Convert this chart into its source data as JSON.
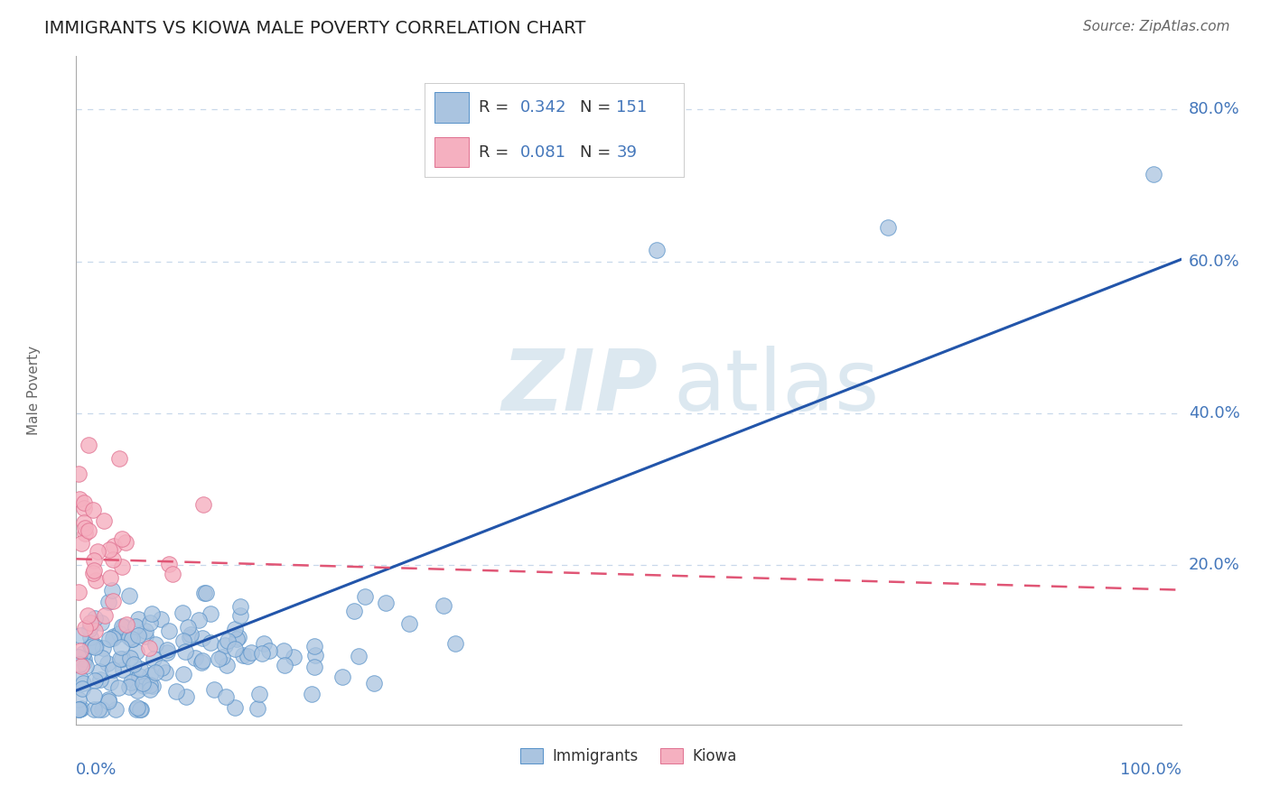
{
  "title": "IMMIGRANTS VS KIOWA MALE POVERTY CORRELATION CHART",
  "source": "Source: ZipAtlas.com",
  "ylabel": "Male Poverty",
  "watermark_zip": "ZIP",
  "watermark_atlas": "atlas",
  "legend_immigrants": "Immigrants",
  "legend_kiowa": "Kiowa",
  "r_immigrants": "0.342",
  "n_immigrants": "151",
  "r_kiowa": "0.081",
  "n_kiowa": "39",
  "immigrants_color": "#aac4e0",
  "immigrants_edge_color": "#5590c8",
  "immigrants_line_color": "#2255aa",
  "kiowa_color": "#f5b0c0",
  "kiowa_edge_color": "#e07090",
  "kiowa_line_color": "#e05575",
  "background_color": "#ffffff",
  "grid_color": "#c8d8ea",
  "axis_label_color": "#4477bb",
  "title_color": "#222222",
  "watermark_color": "#dce8f0",
  "legend_text_color": "#333333",
  "legend_value_color": "#4477bb",
  "ytick_positions": [
    0.2,
    0.4,
    0.6,
    0.8
  ],
  "ytick_labels": [
    "20.0%",
    "40.0%",
    "60.0%",
    "80.0%"
  ],
  "xlim": [
    0.0,
    1.0
  ],
  "ylim": [
    -0.01,
    0.87
  ]
}
